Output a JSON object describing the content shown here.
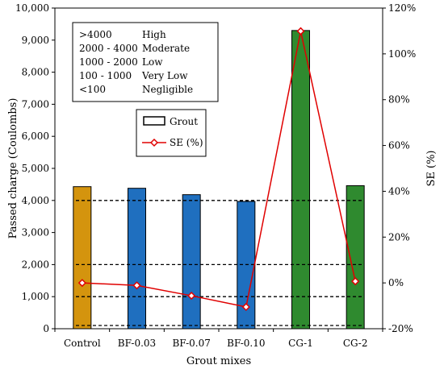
{
  "chart_data": {
    "type": "bar",
    "categories": [
      "Control",
      "BF-0.03",
      "BF-0.07",
      "BF-0.10",
      "CG-1",
      "CG-2"
    ],
    "series": [
      {
        "name": "Grout",
        "type": "bar",
        "axis": "left",
        "values": [
          4430,
          4380,
          4180,
          3970,
          9300,
          4460
        ],
        "colors": [
          "#D4940E",
          "#1F6FBF",
          "#1F6FBF",
          "#1F6FBF",
          "#2F8A2F",
          "#2F8A2F"
        ]
      },
      {
        "name": "SE (%)",
        "type": "line",
        "axis": "right",
        "values": [
          0.0,
          -1.1,
          -5.6,
          -10.5,
          109.9,
          0.7
        ],
        "color": "#E00000",
        "marker": "diamond"
      }
    ],
    "xlabel": "Grout mixes",
    "ylabel": "Passed charge (Coulombs)",
    "y2label": "SE (%)",
    "ylim": [
      0,
      10000
    ],
    "y2lim": [
      -20,
      120
    ],
    "yticks": [
      "0",
      "1,000",
      "2,000",
      "3,000",
      "4,000",
      "5,000",
      "6,000",
      "7,000",
      "8,000",
      "9,000",
      "10,000"
    ],
    "y2ticks": [
      "-20%",
      "0%",
      "20%",
      "40%",
      "60%",
      "80%",
      "100%",
      "120%"
    ],
    "threshold_lines": [
      100,
      1000,
      2000,
      4000
    ],
    "grid": false,
    "legend_position": "top-center",
    "classification_box": {
      "rows": [
        {
          "range": ">4000",
          "label": "High"
        },
        {
          "range": "2000 - 4000",
          "label": "Moderate"
        },
        {
          "range": "1000 - 2000",
          "label": "Low"
        },
        {
          "range": "100 - 1000",
          "label": "Very Low"
        },
        {
          "range": "<100",
          "label": "Negligible"
        }
      ]
    }
  }
}
